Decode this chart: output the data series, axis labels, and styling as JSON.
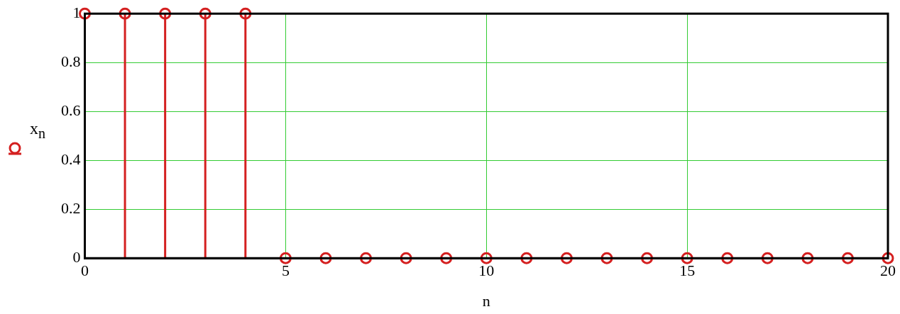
{
  "chart_data": {
    "type": "lollipop",
    "xlabel": "n",
    "ylabel": "x$_{n}$",
    "x": [
      0,
      1,
      2,
      3,
      4,
      5,
      6,
      7,
      8,
      9,
      10,
      11,
      12,
      13,
      14,
      15,
      16,
      17,
      18,
      19,
      20
    ],
    "series": [
      {
        "color": "#d42020",
        "values": [
          1,
          1,
          1,
          1,
          1,
          0,
          0,
          0,
          0,
          0,
          0,
          0,
          0,
          0,
          0,
          0,
          0,
          0,
          0,
          0,
          0
        ]
      }
    ],
    "xlim": [
      0,
      20
    ],
    "xticks": [
      0,
      5,
      10,
      15,
      20
    ],
    "ylim": [
      0,
      1
    ],
    "yticks": [
      0,
      0.2,
      0.4,
      0.6,
      0.8,
      1
    ],
    "grid": true,
    "marker": "circle",
    "line_style": "solid"
  }
}
